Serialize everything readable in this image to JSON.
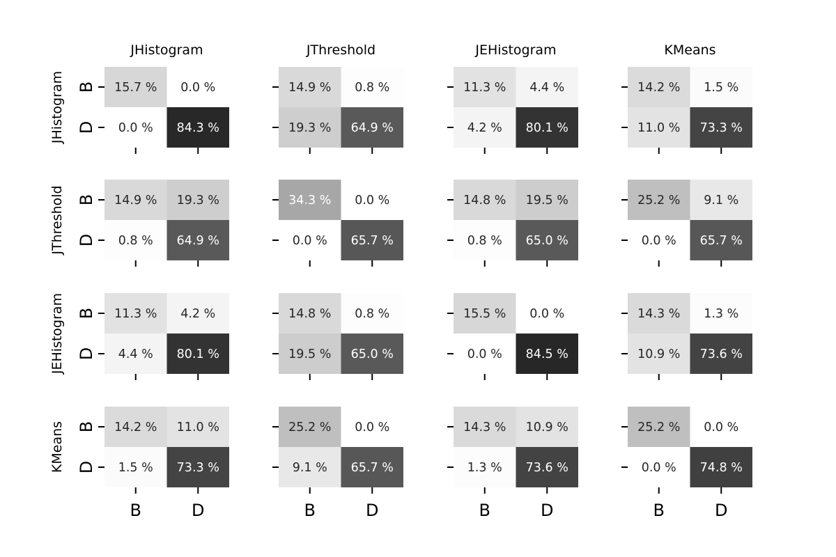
{
  "chart_data": {
    "type": "heatmap",
    "colormap": "greys",
    "vmin": 0,
    "vmax": 85,
    "unit": "%",
    "col_titles": [
      "JHistogram",
      "JThreshold",
      "JEHistogram",
      "KMeans"
    ],
    "row_titles": [
      "JHistogram",
      "JThreshold",
      "JEHistogram",
      "KMeans"
    ],
    "tick_labels": [
      "B",
      "D"
    ],
    "matrices": [
      [
        [
          [
            15.7,
            0.0
          ],
          [
            0.0,
            84.3
          ]
        ],
        [
          [
            14.9,
            0.8
          ],
          [
            19.3,
            64.9
          ]
        ],
        [
          [
            11.3,
            4.4
          ],
          [
            4.2,
            80.1
          ]
        ],
        [
          [
            14.2,
            1.5
          ],
          [
            11.0,
            73.3
          ]
        ]
      ],
      [
        [
          [
            14.9,
            19.3
          ],
          [
            0.8,
            64.9
          ]
        ],
        [
          [
            34.3,
            0.0
          ],
          [
            0.0,
            65.7
          ]
        ],
        [
          [
            14.8,
            19.5
          ],
          [
            0.8,
            65.0
          ]
        ],
        [
          [
            25.2,
            9.1
          ],
          [
            0.0,
            65.7
          ]
        ]
      ],
      [
        [
          [
            11.3,
            4.2
          ],
          [
            4.4,
            80.1
          ]
        ],
        [
          [
            14.8,
            0.8
          ],
          [
            19.5,
            65.0
          ]
        ],
        [
          [
            15.5,
            0.0
          ],
          [
            0.0,
            84.5
          ]
        ],
        [
          [
            14.3,
            1.3
          ],
          [
            10.9,
            73.6
          ]
        ]
      ],
      [
        [
          [
            14.2,
            11.0
          ],
          [
            1.5,
            73.3
          ]
        ],
        [
          [
            25.2,
            0.0
          ],
          [
            9.1,
            65.7
          ]
        ],
        [
          [
            14.3,
            10.9
          ],
          [
            1.3,
            73.6
          ]
        ],
        [
          [
            25.2,
            0.0
          ],
          [
            0.0,
            74.8
          ]
        ]
      ]
    ]
  }
}
